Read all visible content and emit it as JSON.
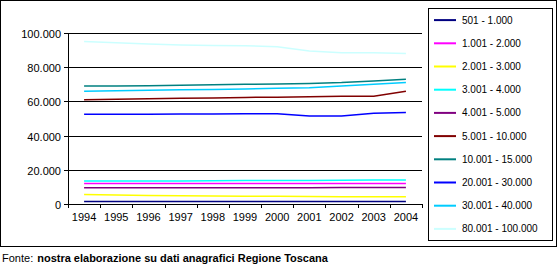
{
  "chart_data": {
    "type": "line",
    "categories": [
      "1994",
      "1995",
      "1996",
      "1997",
      "1998",
      "1999",
      "2000",
      "2001",
      "2002",
      "2003",
      "2004"
    ],
    "series": [
      {
        "name": "501 - 1.000",
        "color": "#000080",
        "values": [
          1500,
          1500,
          1500,
          1450,
          1450,
          1450,
          1400,
          1400,
          1400,
          1400,
          1400
        ]
      },
      {
        "name": "1.001 - 2.000",
        "color": "#ff00ff",
        "values": [
          12000,
          12000,
          12000,
          12000,
          12000,
          12000,
          12000,
          12000,
          12000,
          12000,
          12000
        ]
      },
      {
        "name": "2.001 - 3.000",
        "color": "#ffff00",
        "values": [
          5500,
          5200,
          5000,
          4800,
          4700,
          4600,
          4500,
          4400,
          4300,
          4200,
          4200
        ]
      },
      {
        "name": "3.001 - 4.000",
        "color": "#00ffff",
        "values": [
          13500,
          13500,
          13500,
          13500,
          13600,
          13700,
          13800,
          13800,
          13900,
          14000,
          14000
        ]
      },
      {
        "name": "4.001 - 5.000",
        "color": "#800080",
        "values": [
          9500,
          9500,
          9500,
          9500,
          9500,
          9500,
          9500,
          9500,
          9600,
          9600,
          9600
        ]
      },
      {
        "name": "5.001 - 10.000",
        "color": "#800000",
        "values": [
          61000,
          61200,
          61500,
          61800,
          62000,
          62300,
          62500,
          62700,
          63000,
          63000,
          66000
        ]
      },
      {
        "name": "10.001 - 15.000",
        "color": "#008080",
        "values": [
          69000,
          69000,
          69200,
          69500,
          69700,
          70000,
          70200,
          70500,
          71000,
          72000,
          73000
        ]
      },
      {
        "name": "20.001 - 30.000",
        "color": "#0000ff",
        "values": [
          52500,
          52500,
          52500,
          52600,
          52700,
          52800,
          52800,
          51500,
          51500,
          53000,
          53500
        ]
      },
      {
        "name": "30.001 - 40.000",
        "color": "#00ccff",
        "values": [
          66000,
          66200,
          66500,
          66800,
          67000,
          67300,
          67700,
          68000,
          69000,
          70000,
          71000
        ]
      },
      {
        "name": "80.001 - 100.000",
        "color": "#ccffff",
        "values": [
          95000,
          94300,
          93500,
          93000,
          92700,
          92500,
          92000,
          89500,
          88500,
          88500,
          88000
        ]
      }
    ],
    "ylim": [
      0,
      100000
    ],
    "yticks": [
      0,
      {
        "value": 20000,
        "label": "20.000"
      },
      {
        "value": 40000,
        "label": "40.000"
      },
      {
        "value": 60000,
        "label": "60.000"
      },
      {
        "value": 80000,
        "label": "80.000"
      },
      {
        "value": 100000,
        "label": "100.000"
      }
    ],
    "grid": true,
    "legend": "right",
    "source_label": "Fonte:",
    "source": "nostra elaborazione su dati anagrafici Regione Toscana"
  }
}
